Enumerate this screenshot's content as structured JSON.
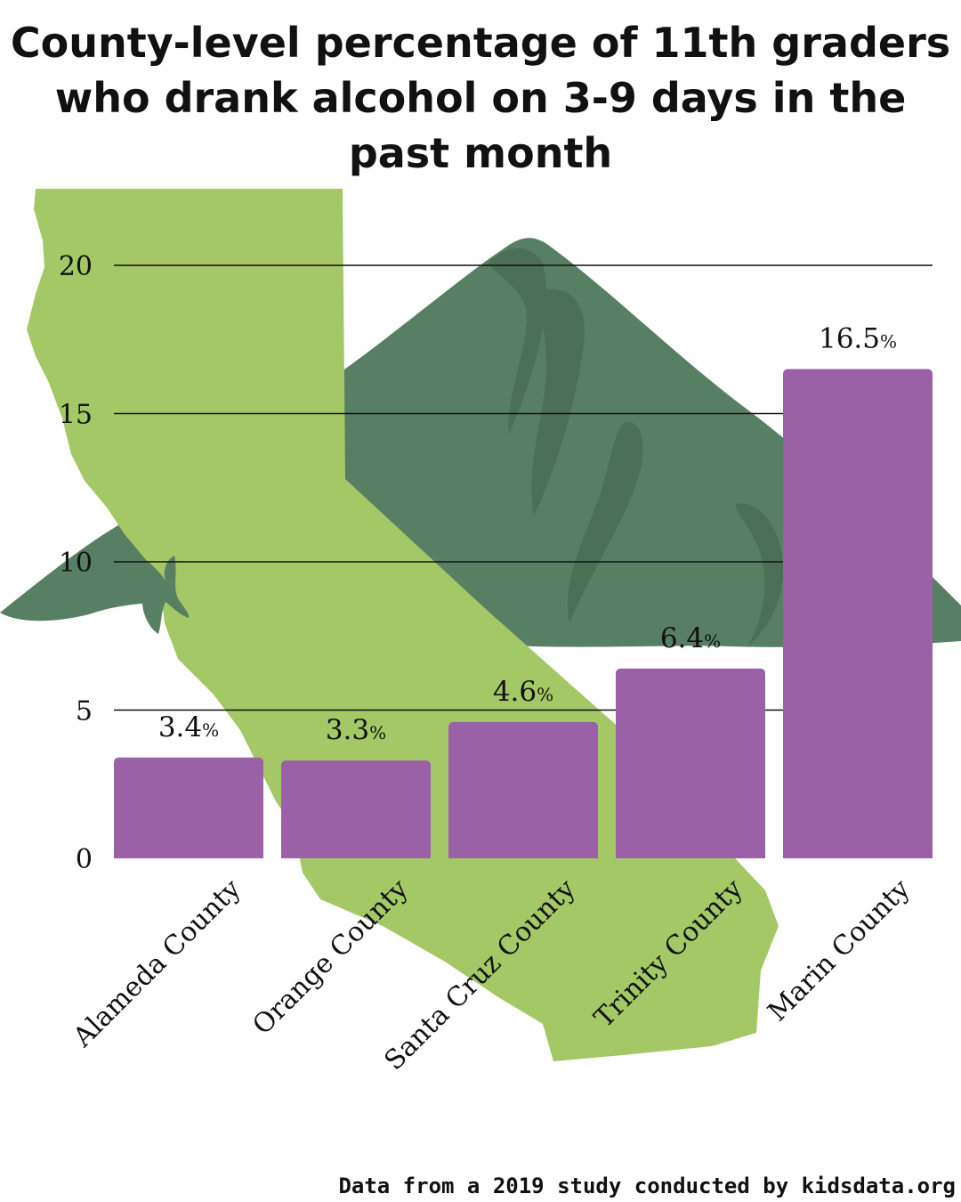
{
  "title_lines": [
    "County-level percentage of 11th graders",
    "who drank alcohol on 3-9 days in the",
    "past month"
  ],
  "source": "Data from a 2019 study conducted by kidsdata.org",
  "colors": {
    "bar": "#9b61a7",
    "california_shape": "#a4c866",
    "mountain": "#577f64",
    "mountain_shade": "#4a7056",
    "gridline": "#111111",
    "text": "#111111"
  },
  "chart_data": {
    "type": "bar",
    "title": "County-level percentage of 11th graders who drank alcohol on 3-9 days in the past month",
    "categories": [
      "Alameda County",
      "Orange County",
      "Santa Cruz County",
      "Trinity County",
      "Marin County"
    ],
    "values": [
      3.4,
      3.3,
      4.6,
      6.4,
      16.5
    ],
    "data_labels": [
      "3.4%",
      "3.3%",
      "4.6%",
      "6.4%",
      "16.5%"
    ],
    "y_ticks": [
      0,
      5,
      10,
      15,
      20
    ],
    "ylim": [
      0,
      22
    ],
    "grid": true,
    "legend": "none",
    "xlabel": "",
    "ylabel": ""
  }
}
